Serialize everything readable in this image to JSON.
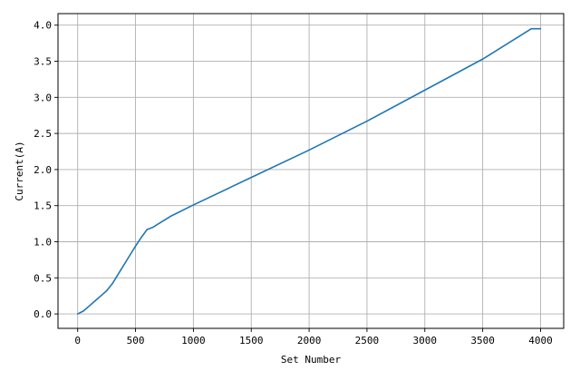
{
  "chart_data": {
    "type": "line",
    "title": "",
    "xlabel": "Set Number",
    "ylabel": "Current(A)",
    "xlim": [
      -170,
      4200
    ],
    "ylim": [
      -0.2,
      4.16
    ],
    "grid": true,
    "xticks": [
      0,
      500,
      1000,
      1500,
      2000,
      2500,
      3000,
      3500,
      4000
    ],
    "xtick_labels": [
      "0",
      "500",
      "1000",
      "1500",
      "2000",
      "2500",
      "3000",
      "3500",
      "4000"
    ],
    "yticks": [
      0.0,
      0.5,
      1.0,
      1.5,
      2.0,
      2.5,
      3.0,
      3.5,
      4.0
    ],
    "ytick_labels": [
      "0.0",
      "0.5",
      "1.0",
      "1.5",
      "2.0",
      "2.5",
      "3.0",
      "3.5",
      "4.0"
    ],
    "series": [
      {
        "color": "#1f77b4",
        "x": [
          0,
          50,
          100,
          150,
          200,
          250,
          300,
          350,
          400,
          450,
          500,
          550,
          600,
          650,
          700,
          800,
          1000,
          1500,
          2000,
          2500,
          3000,
          3500,
          3900,
          3920,
          3950,
          4000
        ],
        "y": [
          0.0,
          0.04,
          0.11,
          0.18,
          0.25,
          0.32,
          0.42,
          0.55,
          0.68,
          0.81,
          0.94,
          1.06,
          1.17,
          1.2,
          1.25,
          1.35,
          1.51,
          1.89,
          2.27,
          2.67,
          3.1,
          3.53,
          3.93,
          3.95,
          3.95,
          3.95
        ]
      }
    ]
  }
}
